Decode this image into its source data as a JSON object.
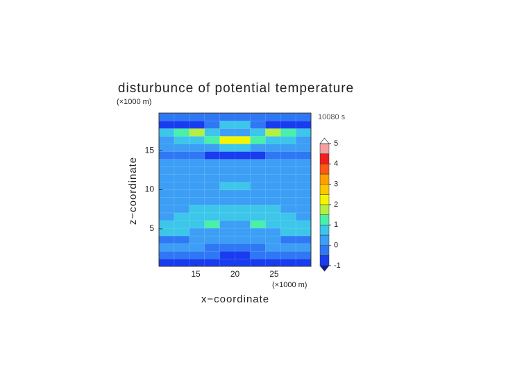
{
  "chart_data": {
    "type": "contour",
    "title": "disturbunce of potential temperature",
    "time_label": "10080 s",
    "x_label": "x−coordinate",
    "y_label": "z−coordinate",
    "x_unit": "(×1000 m)",
    "y_unit": "(×1000 m)",
    "xlim": [
      10.3,
      29.7
    ],
    "ylim": [
      0.2,
      19.8
    ],
    "xticks": [
      15,
      20,
      25
    ],
    "yticks": [
      5,
      10,
      15
    ],
    "x": [
      11.27,
      13.21,
      15.15,
      17.09,
      19.03,
      20.97,
      22.91,
      24.85,
      26.79,
      28.73
    ],
    "y": [
      0.69,
      1.67,
      2.65,
      3.63,
      4.61,
      5.59,
      6.57,
      7.55,
      8.53,
      9.51,
      10.49,
      11.47,
      12.45,
      13.43,
      14.41,
      15.39,
      16.37,
      17.35,
      18.33,
      19.31
    ],
    "z": [
      [
        -0.6,
        -0.6,
        -0.6,
        -0.6,
        -0.7,
        -0.7,
        -0.6,
        -0.6,
        -0.6,
        -0.6
      ],
      [
        -0.2,
        -0.2,
        -0.3,
        -0.3,
        -0.6,
        -0.6,
        -0.3,
        -0.3,
        -0.2,
        -0.2
      ],
      [
        0.2,
        0.1,
        0.1,
        -0.1,
        -0.3,
        -0.3,
        -0.1,
        0.1,
        0.1,
        0.2
      ],
      [
        -0.2,
        -0.1,
        0.1,
        0.2,
        0.2,
        0.2,
        0.2,
        0.1,
        -0.1,
        -0.2
      ],
      [
        0.6,
        0.6,
        0.4,
        0.3,
        0.2,
        0.2,
        0.3,
        0.4,
        0.6,
        0.6
      ],
      [
        0.7,
        0.8,
        0.9,
        1.3,
        0.4,
        0.4,
        1.3,
        0.9,
        0.8,
        0.7
      ],
      [
        0.4,
        0.6,
        0.8,
        0.9,
        0.8,
        0.8,
        0.9,
        0.8,
        0.6,
        0.4
      ],
      [
        0.3,
        0.4,
        0.6,
        0.7,
        0.7,
        0.7,
        0.7,
        0.6,
        0.4,
        0.3
      ],
      [
        0.2,
        0.2,
        0.2,
        0.3,
        0.3,
        0.3,
        0.3,
        0.2,
        0.2,
        0.2
      ],
      [
        0.2,
        0.2,
        0.2,
        0.2,
        0.1,
        0.1,
        0.2,
        0.2,
        0.2,
        0.2
      ],
      [
        0.1,
        0.1,
        0.2,
        0.3,
        0.6,
        0.6,
        0.3,
        0.2,
        0.1,
        0.1
      ],
      [
        0.2,
        0.3,
        0.3,
        0.3,
        0.1,
        0.1,
        0.3,
        0.3,
        0.3,
        0.2
      ],
      [
        0.1,
        0.1,
        0.2,
        0.3,
        0.2,
        0.2,
        0.3,
        0.2,
        0.1,
        0.1
      ],
      [
        0.2,
        0.3,
        0.3,
        0.3,
        0.3,
        0.3,
        0.3,
        0.3,
        0.3,
        0.2
      ],
      [
        -0.1,
        -0.2,
        -0.4,
        -0.6,
        -0.6,
        -0.6,
        -0.6,
        -0.4,
        -0.2,
        -0.1
      ],
      [
        0.2,
        0.4,
        0.3,
        0.4,
        0.6,
        0.6,
        0.4,
        0.3,
        0.4,
        0.2
      ],
      [
        0.3,
        0.6,
        0.7,
        1.2,
        2.2,
        2.2,
        1.2,
        0.7,
        0.6,
        0.3
      ],
      [
        0.6,
        1.3,
        1.7,
        0.6,
        0.4,
        0.4,
        0.6,
        1.7,
        1.3,
        0.6
      ],
      [
        -0.6,
        -0.7,
        -0.6,
        -0.4,
        0.6,
        0.6,
        -0.4,
        -0.6,
        -0.7,
        -0.6
      ],
      [
        -0.3,
        -0.3,
        -0.3,
        -0.3,
        -0.4,
        -0.4,
        -0.3,
        -0.3,
        -0.3,
        -0.3
      ]
    ],
    "levels": [
      -1,
      -0.5,
      0,
      0.5,
      1,
      1.5,
      2,
      2.5,
      3,
      3.5,
      4,
      4.5,
      5
    ],
    "colors": [
      "#1a3cf0",
      "#2f78f5",
      "#3c9ef5",
      "#3cc6ea",
      "#48f0a8",
      "#b4f044",
      "#f5f500",
      "#ffc800",
      "#ffa000",
      "#ff5a14",
      "#f01e1e",
      "#f5a0a0"
    ],
    "under_color": "#0a1ea0",
    "over_color": "#ffffff",
    "cbar_ticks": [
      -1,
      0,
      1,
      2,
      3,
      4,
      5
    ],
    "grid": true
  }
}
